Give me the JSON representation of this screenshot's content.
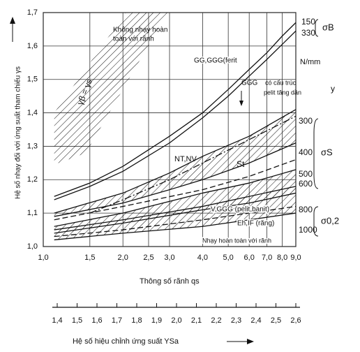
{
  "chart_data": {
    "type": "line",
    "ylabel": "Hệ số nhạy đối với ứng suất tham chiếu γs",
    "xlabel": "Thông số rãnh  qs",
    "x2label": "Hệ số hiệu chỉnh ứng suất YSa",
    "xscale": "log",
    "grid": true,
    "color": "#111111",
    "xlim": [
      1.0,
      9.0
    ],
    "ylim": [
      1.0,
      1.7
    ],
    "xticks": [
      {
        "value": 1.0,
        "label": "1,0"
      },
      {
        "value": 1.5,
        "label": "1,5"
      },
      {
        "value": 2.0,
        "label": "2,0"
      },
      {
        "value": 2.5,
        "label": "2,5"
      },
      {
        "value": 3.0,
        "label": "3,0"
      },
      {
        "value": 4.0,
        "label": "4,0"
      },
      {
        "value": 5.0,
        "label": "5,0"
      },
      {
        "value": 6.0,
        "label": "6,0"
      },
      {
        "value": 7.0,
        "label": "7,0"
      },
      {
        "value": 8.0,
        "label": "8,0"
      },
      {
        "value": 9.0,
        "label": "9,0"
      }
    ],
    "yticks": [
      {
        "value": 1.0,
        "label": "1,0"
      },
      {
        "value": 1.1,
        "label": "1,1"
      },
      {
        "value": 1.2,
        "label": "1,2"
      },
      {
        "value": 1.3,
        "label": "1,3"
      },
      {
        "value": 1.4,
        "label": "1,4"
      },
      {
        "value": 1.5,
        "label": "1,5"
      },
      {
        "value": 1.6,
        "label": "1,6"
      },
      {
        "value": 1.7,
        "label": "1,7"
      }
    ],
    "x2lim": [
      1.4,
      2.6
    ],
    "x2ticks": [
      {
        "value": 1.4,
        "label": "1,4"
      },
      {
        "value": 1.5,
        "label": "1,5"
      },
      {
        "value": 1.6,
        "label": "1,6"
      },
      {
        "value": 1.7,
        "label": "1,7"
      },
      {
        "value": 1.8,
        "label": "1,8"
      },
      {
        "value": 1.9,
        "label": "1,9"
      },
      {
        "value": 2.0,
        "label": "2,0"
      },
      {
        "value": 2.1,
        "label": "2,1"
      },
      {
        "value": 2.2,
        "label": "2,2"
      },
      {
        "value": 2.3,
        "label": "2,3"
      },
      {
        "value": 2.4,
        "label": "2,4"
      },
      {
        "value": 2.5,
        "label": "2,5"
      },
      {
        "value": 2.6,
        "label": "2,6"
      }
    ],
    "curves": [
      {
        "style": "solid",
        "x": [
          1.1,
          1.5,
          2,
          3,
          4,
          5,
          6,
          7,
          8,
          9
        ],
        "y": [
          1.15,
          1.19,
          1.24,
          1.33,
          1.4,
          1.47,
          1.53,
          1.58,
          1.63,
          1.67
        ]
      },
      {
        "style": "solid",
        "x": [
          1.1,
          1.5,
          2,
          3,
          4,
          5,
          6,
          7,
          8,
          9
        ],
        "y": [
          1.14,
          1.18,
          1.225,
          1.31,
          1.385,
          1.45,
          1.51,
          1.56,
          1.605,
          1.645
        ]
      },
      {
        "style": "dashdot",
        "x": [
          1.5,
          2,
          3,
          4,
          6,
          9
        ],
        "y": [
          1.1,
          1.14,
          1.2,
          1.25,
          1.32,
          1.39
        ]
      },
      {
        "style": "solid",
        "x": [
          1.1,
          2,
          3,
          4,
          6,
          9
        ],
        "y": [
          1.1,
          1.16,
          1.22,
          1.27,
          1.33,
          1.41
        ]
      },
      {
        "style": "solid",
        "x": [
          1.1,
          2,
          3,
          4,
          6,
          9
        ],
        "y": [
          1.09,
          1.13,
          1.17,
          1.2,
          1.25,
          1.31
        ]
      },
      {
        "style": "dashed",
        "x": [
          1.1,
          2,
          4,
          6,
          9
        ],
        "y": [
          1.08,
          1.12,
          1.17,
          1.21,
          1.26
        ]
      },
      {
        "style": "solid",
        "x": [
          1.1,
          2,
          4,
          6,
          9
        ],
        "y": [
          1.06,
          1.1,
          1.16,
          1.19,
          1.23
        ]
      },
      {
        "style": "solid",
        "x": [
          1.1,
          2,
          4,
          6,
          9
        ],
        "y": [
          1.04,
          1.07,
          1.11,
          1.13,
          1.16
        ]
      },
      {
        "style": "solid",
        "x": [
          1.1,
          2,
          4,
          6,
          9
        ],
        "y": [
          1.05,
          1.08,
          1.12,
          1.15,
          1.18
        ]
      },
      {
        "style": "solid",
        "x": [
          1.1,
          2,
          4,
          6,
          9
        ],
        "y": [
          1.02,
          1.04,
          1.06,
          1.08,
          1.1
        ]
      },
      {
        "style": "dashed",
        "x": [
          1.1,
          2,
          4,
          6,
          9
        ],
        "y": [
          1.03,
          1.05,
          1.08,
          1.1,
          1.12
        ]
      }
    ],
    "regions": [
      {
        "x": [
          1.1,
          2.05,
          2.95,
          1.45,
          1.15,
          1.1
        ],
        "y": [
          1.4,
          1.7,
          1.7,
          1.28,
          1.25,
          1.25
        ]
      },
      {
        "x": [
          1.1,
          2,
          3,
          4,
          6,
          9,
          9,
          6,
          4,
          3,
          2,
          1.1
        ],
        "y": [
          1.1,
          1.16,
          1.22,
          1.27,
          1.33,
          1.41,
          1.31,
          1.25,
          1.2,
          1.17,
          1.13,
          1.09
        ]
      },
      {
        "x": [
          1.1,
          2,
          4,
          6,
          9,
          9,
          6,
          4,
          2,
          1.1
        ],
        "y": [
          1.06,
          1.1,
          1.16,
          1.19,
          1.23,
          1.16,
          1.13,
          1.11,
          1.07,
          1.04
        ]
      },
      {
        "x": [
          1.1,
          2,
          4,
          6,
          9,
          9,
          6,
          4,
          2,
          1.1
        ],
        "y": [
          1.05,
          1.08,
          1.12,
          1.15,
          1.18,
          1.1,
          1.08,
          1.06,
          1.04,
          1.02
        ]
      }
    ],
    "annotations": [
      "Không nhạy hoàn",
      "toàn với rãnh",
      "γβ = γs",
      "GG,GGG(ferit",
      "GGG",
      "có cấu trúc",
      "pelit tăng dần",
      "NT,NV",
      "St",
      "V,GGG (pelit,banit)",
      "Eh,IF (răng)",
      "Nhạy hoàn toàn với rãnh",
      "150",
      "330",
      "σB",
      "N/mm",
      "y",
      "300",
      "400",
      "σS",
      "500",
      "600",
      "800",
      "1000",
      "σ0,2"
    ]
  }
}
